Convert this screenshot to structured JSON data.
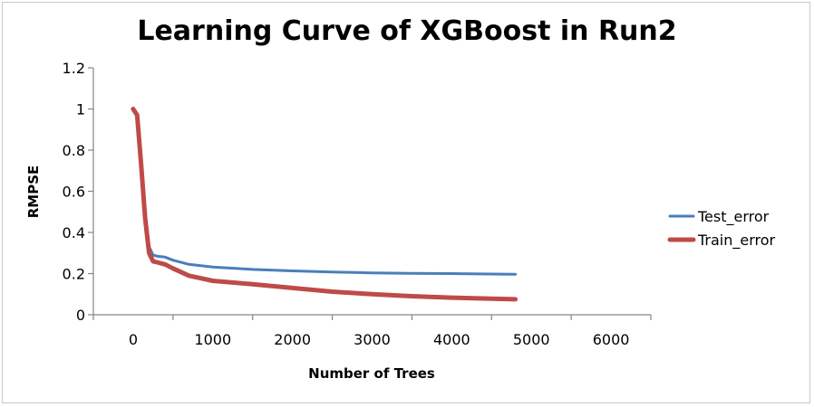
{
  "chart_data": {
    "type": "line",
    "title": "Learning Curve of XGBoost in Run2",
    "xlabel": "Number of Trees",
    "ylabel": "RMPSE",
    "xlim": [
      -500,
      6500
    ],
    "ylim": [
      0,
      1.2
    ],
    "xticks": [
      0,
      1000,
      2000,
      3000,
      4000,
      5000,
      6000
    ],
    "yticks": [
      0,
      0.2,
      0.4,
      0.6,
      0.8,
      1,
      1.2
    ],
    "xtick_labels": [
      "0",
      "1000",
      "2000",
      "3000",
      "4000",
      "5000",
      "6000"
    ],
    "ytick_labels": [
      "0",
      "0.2",
      "0.4",
      "0.6",
      "0.8",
      "1",
      "1.2"
    ],
    "grid": false,
    "legend_position": "right",
    "series": [
      {
        "name": "Test_error",
        "color": "#4a7ebb",
        "x": [
          0,
          50,
          100,
          150,
          200,
          250,
          300,
          400,
          500,
          700,
          1000,
          1500,
          2000,
          2500,
          3000,
          3500,
          4000,
          4500,
          4800
        ],
        "y": [
          1.0,
          0.97,
          0.75,
          0.5,
          0.33,
          0.29,
          0.285,
          0.28,
          0.265,
          0.245,
          0.232,
          0.22,
          0.213,
          0.208,
          0.203,
          0.201,
          0.2,
          0.198,
          0.197
        ]
      },
      {
        "name": "Train_error",
        "color": "#be4b48",
        "x": [
          0,
          50,
          100,
          150,
          200,
          250,
          300,
          400,
          500,
          700,
          1000,
          1500,
          2000,
          2500,
          3000,
          3500,
          4000,
          4500,
          4800
        ],
        "y": [
          1.0,
          0.97,
          0.73,
          0.47,
          0.3,
          0.26,
          0.255,
          0.245,
          0.225,
          0.19,
          0.165,
          0.148,
          0.13,
          0.112,
          0.1,
          0.09,
          0.083,
          0.078,
          0.075
        ]
      }
    ]
  }
}
